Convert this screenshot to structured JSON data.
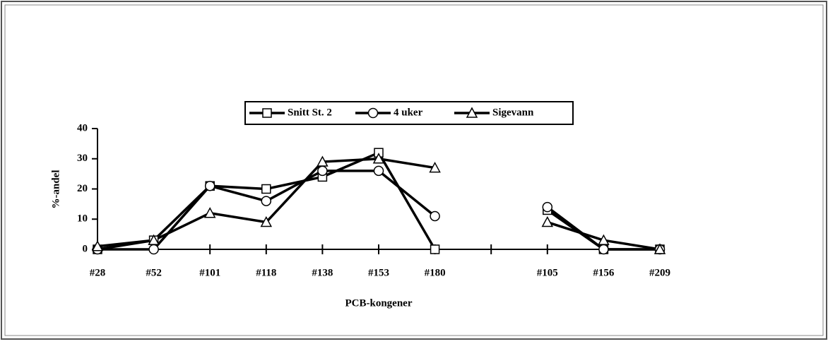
{
  "chart_data": {
    "type": "line",
    "x_label": "PCB-kongener",
    "y_label": "%-andel",
    "categories": [
      "#28",
      "#52",
      "#101",
      "#118",
      "#138",
      "#153",
      "#180",
      null,
      "#105",
      "#156",
      "#209"
    ],
    "series": [
      {
        "name": "Snitt St. 2",
        "color": "#000000",
        "marker": "square",
        "values": [
          0,
          3,
          21,
          20,
          24,
          32,
          0,
          null,
          13,
          0,
          0
        ]
      },
      {
        "name": "4 uker",
        "color": "#000000",
        "marker": "circle",
        "values": [
          0,
          0,
          21,
          16,
          26,
          26,
          11,
          null,
          14,
          0,
          0
        ]
      },
      {
        "name": "Sigevann",
        "color": "#000000",
        "marker": "triangle",
        "values": [
          1,
          3,
          12,
          9,
          29,
          30,
          27,
          null,
          9,
          3,
          0
        ]
      }
    ],
    "ylim": [
      0,
      40
    ],
    "yticks": [
      0,
      10,
      20,
      30,
      40
    ],
    "legend": "top"
  }
}
